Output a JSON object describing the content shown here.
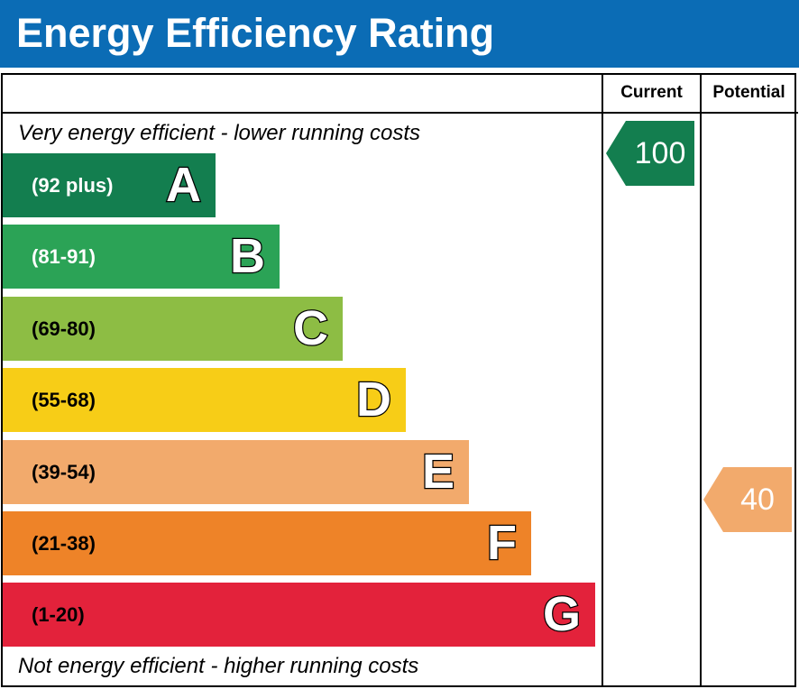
{
  "header": {
    "title": "Energy Efficiency Rating",
    "color": "#0b6cb5"
  },
  "columns": {
    "current": "Current",
    "potential": "Potential"
  },
  "notes": {
    "top": "Very energy efficient - lower running costs",
    "bottom": "Not energy efficient - higher running costs"
  },
  "chart_data": {
    "type": "bar",
    "title": "Energy Efficiency Rating",
    "bands": [
      {
        "letter": "A",
        "range": "(92 plus)",
        "color": "#137e4f",
        "range_text_color": "#ffffff"
      },
      {
        "letter": "B",
        "range": "(81-91)",
        "color": "#2ba356",
        "range_text_color": "#ffffff"
      },
      {
        "letter": "C",
        "range": "(69-80)",
        "color": "#8dbd44",
        "range_text_color": "#000000"
      },
      {
        "letter": "D",
        "range": "(55-68)",
        "color": "#f7cd17",
        "range_text_color": "#000000"
      },
      {
        "letter": "E",
        "range": "(39-54)",
        "color": "#f2aa6c",
        "range_text_color": "#000000"
      },
      {
        "letter": "F",
        "range": "(21-38)",
        "color": "#ee8328",
        "range_text_color": "#000000"
      },
      {
        "letter": "G",
        "range": "(1-20)",
        "color": "#e3223b",
        "range_text_color": "#000000"
      }
    ],
    "current": {
      "value": "100",
      "band": "A",
      "color": "#137e4f"
    },
    "potential": {
      "value": "40",
      "band": "E",
      "color": "#f2aa6c"
    }
  }
}
